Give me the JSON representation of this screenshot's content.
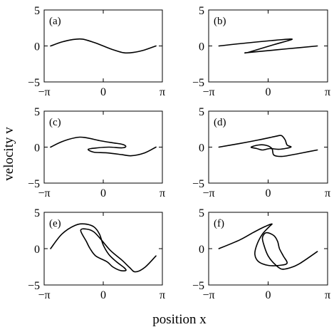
{
  "figure": {
    "xlabel": "position x",
    "ylabel": "velocity v"
  },
  "chart_data": [
    {
      "panel": "(a)",
      "type": "line",
      "xlabel": "position x",
      "ylabel": "velocity v",
      "xlim": [
        -3.14159,
        3.14159
      ],
      "ylim": [
        -5,
        5
      ],
      "xticks": [
        "−π",
        "0",
        "π"
      ],
      "yticks": [
        "5",
        "0",
        "−5"
      ],
      "x_tick_values": [
        -3.14159,
        0,
        3.14159
      ],
      "y_tick_values": [
        5,
        0,
        -5
      ],
      "series": [
        {
          "points": [
            [
              -2.8,
              0
            ],
            [
              -2.2,
              0.55
            ],
            [
              -1.6,
              0.9
            ],
            [
              -1.1,
              0.95
            ],
            [
              -0.5,
              0.5
            ],
            [
              0,
              0
            ],
            [
              0.5,
              -0.5
            ],
            [
              1.1,
              -0.95
            ],
            [
              1.6,
              -0.9
            ],
            [
              2.2,
              -0.55
            ],
            [
              2.8,
              0
            ]
          ]
        }
      ]
    },
    {
      "panel": "(b)",
      "type": "line",
      "xlabel": "position x",
      "ylabel": "velocity v",
      "xlim": [
        -3.14159,
        3.14159
      ],
      "ylim": [
        -5,
        5
      ],
      "xticks": [
        "−π",
        "0",
        "π"
      ],
      "yticks": [
        "5",
        "0",
        "−5"
      ],
      "x_tick_values": [
        -3.14159,
        0,
        3.14159
      ],
      "y_tick_values": [
        5,
        0,
        -5
      ],
      "series": [
        {
          "points": [
            [
              -2.6,
              0
            ],
            [
              -1.2,
              0.4
            ],
            [
              0.4,
              0.8
            ],
            [
              1.1,
              0.95
            ],
            [
              1.2,
              0.85
            ],
            [
              0.2,
              0.1
            ],
            [
              -1.0,
              -0.85
            ],
            [
              -1.2,
              -0.95
            ],
            [
              -0.6,
              -0.8
            ],
            [
              1.0,
              -0.4
            ],
            [
              2.6,
              0
            ]
          ]
        }
      ]
    },
    {
      "panel": "(c)",
      "type": "line",
      "xlabel": "position x",
      "ylabel": "velocity v",
      "xlim": [
        -3.14159,
        3.14159
      ],
      "ylim": [
        -5,
        5
      ],
      "xticks": [
        "−π",
        "0",
        "π"
      ],
      "yticks": [
        "5",
        "0",
        "−5"
      ],
      "x_tick_values": [
        -3.14159,
        0,
        3.14159
      ],
      "y_tick_values": [
        5,
        0,
        -5
      ],
      "series": [
        {
          "points": [
            [
              -2.8,
              0
            ],
            [
              -2.2,
              0.75
            ],
            [
              -1.5,
              1.3
            ],
            [
              -1.0,
              1.35
            ],
            [
              -0.2,
              0.9
            ],
            [
              0.5,
              0.6
            ],
            [
              1.0,
              0.4
            ],
            [
              1.2,
              0.1
            ],
            [
              1.0,
              -0.1
            ],
            [
              0.3,
              0
            ],
            [
              -0.3,
              -0.1
            ],
            [
              -0.8,
              -0.3
            ],
            [
              -0.5,
              -0.7
            ],
            [
              0.2,
              -0.8
            ],
            [
              1.0,
              -1.05
            ],
            [
              1.5,
              -1.2
            ],
            [
              2.2,
              -0.8
            ],
            [
              2.8,
              0
            ]
          ]
        }
      ]
    },
    {
      "panel": "(d)",
      "type": "line",
      "xlabel": "position x",
      "ylabel": "velocity v",
      "xlim": [
        -3.14159,
        3.14159
      ],
      "ylim": [
        -5,
        5
      ],
      "xticks": [
        "−π",
        "0",
        "π"
      ],
      "yticks": [
        "5",
        "0",
        "−5"
      ],
      "x_tick_values": [
        -3.14159,
        0,
        3.14159
      ],
      "y_tick_values": [
        5,
        0,
        -5
      ],
      "series": [
        {
          "points": [
            [
              -2.6,
              0
            ],
            [
              -1.5,
              0.5
            ],
            [
              -0.5,
              1.0
            ],
            [
              0.4,
              1.5
            ],
            [
              0.7,
              1.6
            ],
            [
              0.9,
              1.0
            ],
            [
              1.0,
              0.3
            ],
            [
              1.2,
              0
            ],
            [
              0.6,
              -0.3
            ],
            [
              0.1,
              -0.2
            ],
            [
              -0.3,
              -0.4
            ],
            [
              -0.6,
              -0.2
            ],
            [
              -0.9,
              0
            ],
            [
              -0.5,
              0.3
            ],
            [
              -0.1,
              0.25
            ],
            [
              0.2,
              -0.2
            ],
            [
              0.3,
              -1.1
            ],
            [
              0.7,
              -1.3
            ],
            [
              1.2,
              -1.1
            ],
            [
              1.8,
              -0.8
            ],
            [
              2.6,
              -0.4
            ]
          ]
        }
      ]
    },
    {
      "panel": "(e)",
      "type": "line",
      "xlabel": "position x",
      "ylabel": "velocity v",
      "xlim": [
        -3.14159,
        3.14159
      ],
      "ylim": [
        -5,
        5
      ],
      "xticks": [
        "−π",
        "0",
        "π"
      ],
      "yticks": [
        "5",
        "0",
        "−5"
      ],
      "x_tick_values": [
        -3.14159,
        0,
        3.14159
      ],
      "y_tick_values": [
        5,
        0,
        -5
      ],
      "series": [
        {
          "points": [
            [
              -2.8,
              0
            ],
            [
              -2.2,
              2.0
            ],
            [
              -1.5,
              3.2
            ],
            [
              -1.0,
              3.4
            ],
            [
              -0.5,
              3.0
            ],
            [
              -0.2,
              2.0
            ],
            [
              0,
              0.5
            ],
            [
              0.3,
              -0.8
            ],
            [
              0.7,
              -1.8
            ],
            [
              1.1,
              -2.6
            ],
            [
              1.2,
              -3.0
            ],
            [
              0.9,
              -3.0
            ],
            [
              0.5,
              -2.5
            ],
            [
              0.2,
              -1.8
            ],
            [
              -0.4,
              -1.0
            ],
            [
              -0.7,
              0
            ],
            [
              -0.9,
              1.0
            ],
            [
              -1.2,
              2.5
            ],
            [
              -0.9,
              2.7
            ],
            [
              -0.5,
              2.3
            ],
            [
              -0.1,
              1.2
            ],
            [
              0.4,
              -0.3
            ],
            [
              1.0,
              -1.6
            ],
            [
              1.4,
              -2.6
            ],
            [
              1.7,
              -3.2
            ],
            [
              2.2,
              -2.6
            ],
            [
              2.8,
              -1.0
            ]
          ]
        }
      ]
    },
    {
      "panel": "(f)",
      "type": "line",
      "xlabel": "position x",
      "ylabel": "velocity v",
      "xlim": [
        -3.14159,
        3.14159
      ],
      "ylim": [
        -5,
        5
      ],
      "xticks": [
        "−π",
        "0",
        "π"
      ],
      "yticks": [
        "5",
        "0",
        "−5"
      ],
      "x_tick_values": [
        -3.14159,
        0,
        3.14159
      ],
      "y_tick_values": [
        5,
        0,
        -5
      ],
      "series": [
        {
          "points": [
            [
              -2.6,
              0
            ],
            [
              -1.5,
              1.2
            ],
            [
              -0.8,
              2.2
            ],
            [
              -0.2,
              3.0
            ],
            [
              0.2,
              3.4
            ],
            [
              0.05,
              3.0
            ],
            [
              -0.3,
              2.0
            ],
            [
              -0.6,
              0.5
            ],
            [
              -0.7,
              -0.8
            ],
            [
              -0.5,
              -1.8
            ],
            [
              0,
              -2.3
            ],
            [
              0.6,
              -2.3
            ],
            [
              1.0,
              -2.0
            ],
            [
              0.8,
              -1.0
            ],
            [
              0.6,
              0
            ],
            [
              0.5,
              1.0
            ],
            [
              0.3,
              1.8
            ],
            [
              -0.1,
              2.2
            ],
            [
              -0.3,
              1.5
            ],
            [
              -0.2,
              0.3
            ],
            [
              0,
              -1.0
            ],
            [
              0.3,
              -2.0
            ],
            [
              0.7,
              -2.8
            ],
            [
              1.2,
              -2.6
            ],
            [
              1.7,
              -2.0
            ],
            [
              2.6,
              -0.4
            ]
          ]
        }
      ]
    }
  ]
}
